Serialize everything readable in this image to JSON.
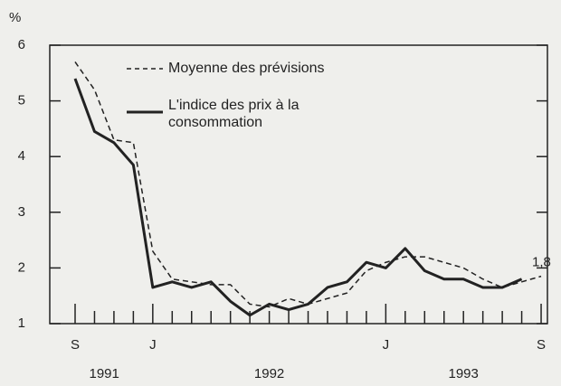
{
  "chart_data": {
    "type": "line",
    "y_unit": "%",
    "categories": [
      "S",
      null,
      null,
      null,
      "J",
      null,
      null,
      null,
      null,
      null,
      null,
      null,
      null,
      null,
      null,
      null,
      "J",
      null,
      null,
      null,
      null,
      null,
      null,
      null,
      "S"
    ],
    "year_labels": [
      "1991",
      "1992",
      "1993"
    ],
    "series": [
      {
        "name": "Moyenne des prévisions",
        "color": "#222222",
        "dash": true,
        "values": [
          5.7,
          5.2,
          4.3,
          4.25,
          2.3,
          1.8,
          1.75,
          1.7,
          1.7,
          1.35,
          1.3,
          1.45,
          1.35,
          1.45,
          1.55,
          1.95,
          2.1,
          2.2,
          2.2,
          2.1,
          2.0,
          1.8,
          1.65,
          1.75,
          1.85
        ]
      },
      {
        "name": "L'indice des prix à la consommation",
        "color": "#222222",
        "dash": false,
        "values": [
          5.4,
          4.45,
          4.25,
          3.85,
          1.65,
          1.75,
          1.65,
          1.75,
          1.4,
          1.15,
          1.35,
          1.25,
          1.35,
          1.65,
          1.75,
          2.1,
          2.0,
          2.35,
          1.95,
          1.8,
          1.8,
          1.65,
          1.65,
          1.8,
          null
        ]
      }
    ],
    "annotation": {
      "text": "1,8",
      "value": 1.8
    },
    "ylim": [
      1,
      6
    ],
    "yticks": [
      1,
      2,
      3,
      4,
      5,
      6
    ]
  }
}
